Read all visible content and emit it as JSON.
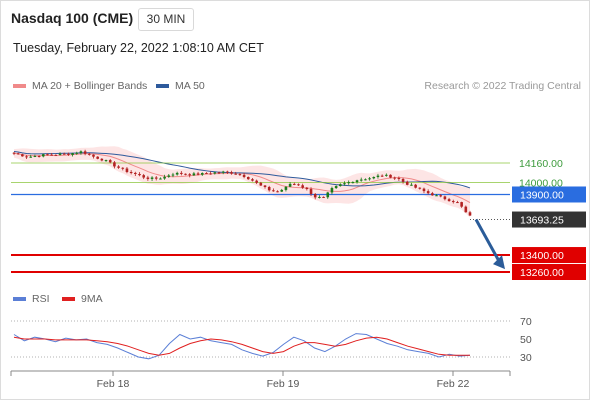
{
  "header": {
    "title": "Nasdaq 100 (CME)",
    "timeframe": "30 MIN",
    "datetime": "Tuesday, February 22, 2022 1:08:10 AM CET",
    "credit": "Research © 2022 Trading Central"
  },
  "legend_price": [
    {
      "label": "MA 20 + Bollinger Bands",
      "color": "#f08a8a"
    },
    {
      "label": "MA 50",
      "color": "#2e5a9c"
    }
  ],
  "legend_rsi": [
    {
      "label": "RSI",
      "color": "#5b7fd6"
    },
    {
      "label": "9MA",
      "color": "#e02020"
    }
  ],
  "colors": {
    "candle_up": "#1a7a1a",
    "candle_down": "#b22222",
    "bollinger_fill": "#fde0e0",
    "ma20": "#f08a8a",
    "ma50": "#2e5a9c",
    "resistance": "#8cc63f",
    "pivot": "#2a6de0",
    "support": "#e00000",
    "arrow": "#2b5c99",
    "last_price_bg": "#333333"
  },
  "chart_data": [
    {
      "type": "candlestick",
      "title": "Nasdaq 100 (CME) 30 MIN",
      "x_ticks": [
        "Feb 18",
        "Feb 19",
        "Feb 22"
      ],
      "ylim": [
        13200,
        14350
      ],
      "grid": false,
      "close_path": [
        [
          0,
          14240
        ],
        [
          10,
          14210
        ],
        [
          20,
          14225
        ],
        [
          30,
          14230
        ],
        [
          40,
          14235
        ],
        [
          48,
          14255
        ],
        [
          52,
          14240
        ],
        [
          58,
          14210
        ],
        [
          66,
          14180
        ],
        [
          74,
          14130
        ],
        [
          82,
          14090
        ],
        [
          90,
          14060
        ],
        [
          96,
          14035
        ],
        [
          102,
          14030
        ],
        [
          108,
          14040
        ],
        [
          114,
          14070
        ],
        [
          120,
          14075
        ],
        [
          128,
          14065
        ],
        [
          136,
          14070
        ],
        [
          144,
          14080
        ],
        [
          152,
          14085
        ],
        [
          160,
          14075
        ],
        [
          166,
          14055
        ],
        [
          172,
          14020
        ],
        [
          178,
          13975
        ],
        [
          184,
          13940
        ],
        [
          190,
          13920
        ],
        [
          196,
          13950
        ],
        [
          200,
          13990
        ],
        [
          206,
          13980
        ],
        [
          212,
          13940
        ],
        [
          218,
          13880
        ],
        [
          224,
          13870
        ],
        [
          230,
          13945
        ],
        [
          236,
          13980
        ],
        [
          242,
          14000
        ],
        [
          248,
          14020
        ],
        [
          254,
          14030
        ],
        [
          260,
          14040
        ],
        [
          266,
          14060
        ],
        [
          272,
          14050
        ],
        [
          278,
          14030
        ],
        [
          284,
          13990
        ],
        [
          292,
          13950
        ],
        [
          300,
          13910
        ],
        [
          308,
          13880
        ],
        [
          316,
          13850
        ],
        [
          322,
          13830
        ],
        [
          326,
          13760
        ],
        [
          330,
          13720
        ]
      ],
      "levels": [
        {
          "label": "14160.00",
          "value": 14160,
          "kind": "resistance"
        },
        {
          "label": "14000.00",
          "value": 14000,
          "kind": "resistance"
        },
        {
          "label": "13900.00",
          "value": 13900,
          "kind": "pivot"
        },
        {
          "label": "13400.00",
          "value": 13400,
          "kind": "support"
        },
        {
          "label": "13260.00",
          "value": 13260,
          "kind": "support"
        }
      ],
      "last_price": {
        "label": "13693.25",
        "value": 13693.25
      },
      "forecast_arrow": {
        "from": 13693.25,
        "to": 13300
      }
    },
    {
      "type": "line",
      "title": "RSI",
      "series": [
        {
          "name": "RSI",
          "values": [
            55,
            48,
            52,
            50,
            47,
            51,
            49,
            50,
            46,
            44,
            40,
            35,
            30,
            28,
            32,
            45,
            55,
            50,
            52,
            48,
            46,
            44,
            38,
            34,
            31,
            35,
            44,
            52,
            48,
            40,
            36,
            42,
            50,
            56,
            55,
            50,
            45,
            42,
            38,
            36,
            34,
            30,
            33,
            31,
            32
          ]
        },
        {
          "name": "9MA",
          "values": [
            52,
            50,
            50,
            50,
            49,
            49,
            49,
            49,
            48,
            47,
            45,
            42,
            38,
            34,
            32,
            34,
            40,
            45,
            48,
            50,
            49,
            47,
            44,
            40,
            36,
            34,
            36,
            42,
            46,
            46,
            44,
            42,
            44,
            48,
            51,
            52,
            50,
            46,
            42,
            39,
            36,
            33,
            32,
            32,
            32
          ]
        }
      ],
      "y_ticks": [
        "70",
        "50",
        "30"
      ],
      "ylim": [
        20,
        80
      ],
      "reference_lines": [
        70,
        30
      ]
    }
  ]
}
